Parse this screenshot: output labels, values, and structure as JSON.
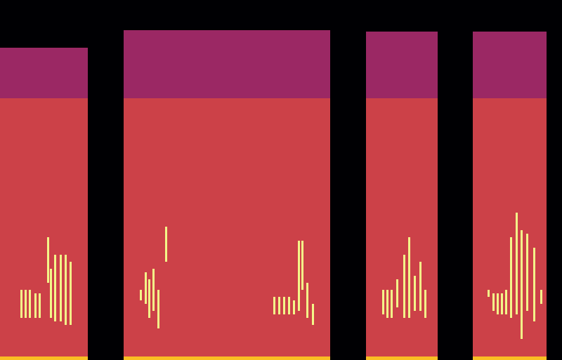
{
  "chart_data": {
    "type": "spectrogram",
    "tick_labels": false,
    "color": "inferno",
    "xlim": [
      0,
      800
    ],
    "ylim": [
      0,
      513
    ],
    "clim": [
      0,
      1
    ],
    "levels": {
      "background": 0.55,
      "upper_band": 0.42,
      "floor": 0.85,
      "call": 0.97
    },
    "segments": [
      {
        "start": 0,
        "end": 125,
        "band_bottom": 373,
        "band_top": 445
      },
      {
        "start": 176,
        "end": 470,
        "band_bottom": 373,
        "band_top": 470
      },
      {
        "start": 521,
        "end": 623,
        "band_bottom": 373,
        "band_top": 468
      },
      {
        "start": 673,
        "end": 778,
        "band_bottom": 373,
        "band_top": 468
      }
    ],
    "floor_freq": 5,
    "calls": [
      {
        "t": 30,
        "f_low": 60,
        "f_high": 100
      },
      {
        "t": 36,
        "f_low": 60,
        "f_high": 100
      },
      {
        "t": 42,
        "f_low": 60,
        "f_high": 100
      },
      {
        "t": 50,
        "f_low": 60,
        "f_high": 95
      },
      {
        "t": 56,
        "f_low": 60,
        "f_high": 95
      },
      {
        "t": 68,
        "f_low": 110,
        "f_high": 175
      },
      {
        "t": 72,
        "f_low": 60,
        "f_high": 130
      },
      {
        "t": 78,
        "f_low": 55,
        "f_high": 150
      },
      {
        "t": 86,
        "f_low": 55,
        "f_high": 150
      },
      {
        "t": 93,
        "f_low": 50,
        "f_high": 150
      },
      {
        "t": 100,
        "f_low": 50,
        "f_high": 140
      },
      {
        "t": 200,
        "f_low": 85,
        "f_high": 100
      },
      {
        "t": 207,
        "f_low": 80,
        "f_high": 125
      },
      {
        "t": 212,
        "f_low": 60,
        "f_high": 115
      },
      {
        "t": 218,
        "f_low": 70,
        "f_high": 130
      },
      {
        "t": 225,
        "f_low": 45,
        "f_high": 100
      },
      {
        "t": 236,
        "f_low": 140,
        "f_high": 190
      },
      {
        "t": 390,
        "f_low": 65,
        "f_high": 90
      },
      {
        "t": 397,
        "f_low": 65,
        "f_high": 90
      },
      {
        "t": 404,
        "f_low": 65,
        "f_high": 90
      },
      {
        "t": 411,
        "f_low": 65,
        "f_high": 90
      },
      {
        "t": 418,
        "f_low": 65,
        "f_high": 85
      },
      {
        "t": 425,
        "f_low": 70,
        "f_high": 170
      },
      {
        "t": 430,
        "f_low": 100,
        "f_high": 170
      },
      {
        "t": 437,
        "f_low": 60,
        "f_high": 110
      },
      {
        "t": 445,
        "f_low": 50,
        "f_high": 80
      },
      {
        "t": 545,
        "f_low": 65,
        "f_high": 100
      },
      {
        "t": 551,
        "f_low": 60,
        "f_high": 100
      },
      {
        "t": 557,
        "f_low": 60,
        "f_high": 100
      },
      {
        "t": 565,
        "f_low": 75,
        "f_high": 115
      },
      {
        "t": 575,
        "f_low": 60,
        "f_high": 150
      },
      {
        "t": 582,
        "f_low": 60,
        "f_high": 175
      },
      {
        "t": 590,
        "f_low": 70,
        "f_high": 120
      },
      {
        "t": 598,
        "f_low": 70,
        "f_high": 140
      },
      {
        "t": 605,
        "f_low": 60,
        "f_high": 100
      },
      {
        "t": 695,
        "f_low": 90,
        "f_high": 100
      },
      {
        "t": 702,
        "f_low": 70,
        "f_high": 95
      },
      {
        "t": 708,
        "f_low": 65,
        "f_high": 95
      },
      {
        "t": 714,
        "f_low": 65,
        "f_high": 95
      },
      {
        "t": 720,
        "f_low": 65,
        "f_high": 100
      },
      {
        "t": 727,
        "f_low": 60,
        "f_high": 175
      },
      {
        "t": 735,
        "f_low": 65,
        "f_high": 210
      },
      {
        "t": 742,
        "f_low": 30,
        "f_high": 185
      },
      {
        "t": 750,
        "f_low": 70,
        "f_high": 180
      },
      {
        "t": 760,
        "f_low": 55,
        "f_high": 160
      },
      {
        "t": 770,
        "f_low": 80,
        "f_high": 100
      }
    ]
  }
}
